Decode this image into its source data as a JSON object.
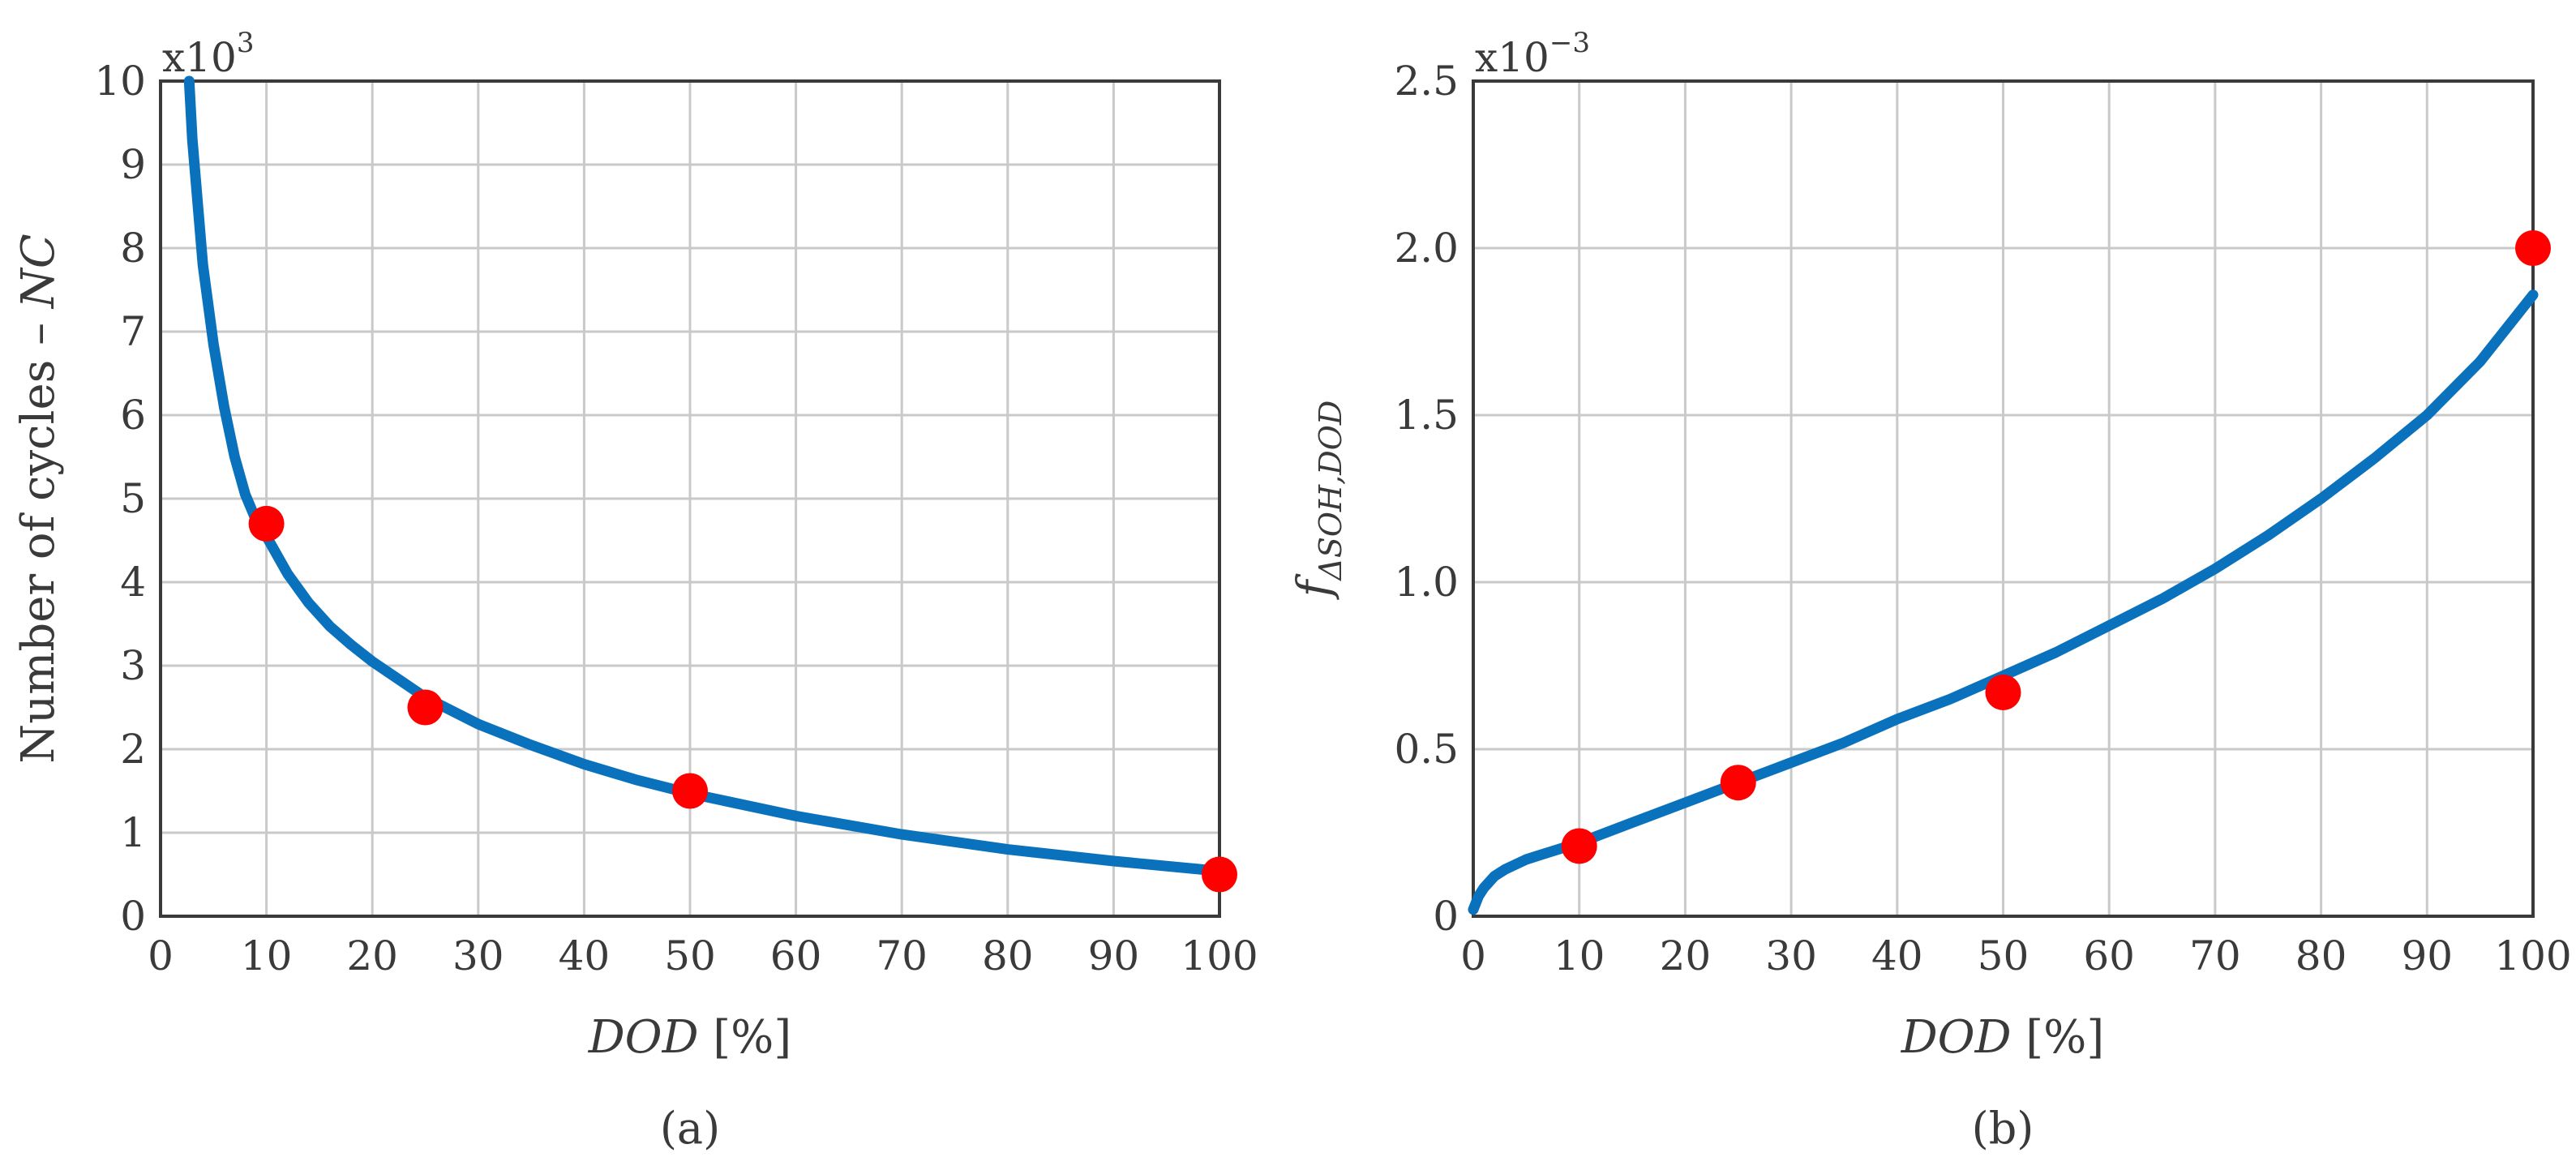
{
  "chart_data": [
    {
      "type": "line",
      "panel_label": "(a)",
      "xlabel_italic": "DOD",
      "xlabel_rest": " [%]",
      "ylabel_text": "Number of cycles – ",
      "ylabel_italic": "NC",
      "multiplier_base": "x10",
      "multiplier_exp": "3",
      "xlim": [
        0,
        100
      ],
      "ylim": [
        0,
        10
      ],
      "xticks": [
        "0",
        "10",
        "20",
        "30",
        "40",
        "50",
        "60",
        "70",
        "80",
        "90",
        "100"
      ],
      "yticks": [
        "0",
        "1",
        "2",
        "3",
        "4",
        "5",
        "6",
        "7",
        "8",
        "9",
        "10"
      ],
      "grid": true,
      "series": [
        {
          "kind": "curve",
          "color": "#0a72bd",
          "x": [
            2.7,
            3,
            4,
            5,
            6,
            7,
            8,
            9,
            10,
            12,
            14,
            16,
            18,
            20,
            25,
            30,
            35,
            40,
            45,
            50,
            60,
            70,
            80,
            90,
            100
          ],
          "y": [
            10.0,
            9.3,
            7.8,
            6.85,
            6.1,
            5.5,
            5.05,
            4.75,
            4.55,
            4.1,
            3.75,
            3.47,
            3.25,
            3.05,
            2.62,
            2.3,
            2.05,
            1.82,
            1.63,
            1.47,
            1.2,
            0.98,
            0.8,
            0.66,
            0.54
          ]
        },
        {
          "kind": "markers",
          "color": "#ff0000",
          "x": [
            10,
            25,
            50,
            100
          ],
          "y": [
            4.7,
            2.5,
            1.5,
            0.5
          ]
        }
      ]
    },
    {
      "type": "line",
      "panel_label": "(b)",
      "xlabel_italic": "DOD",
      "xlabel_rest": " [%]",
      "ylabel_f": "f",
      "ylabel_sub": "ΔSOH,DOD",
      "multiplier_base": "x10",
      "multiplier_exp": "−3",
      "xlim": [
        0,
        100
      ],
      "ylim": [
        0,
        2.5
      ],
      "xticks": [
        "0",
        "10",
        "20",
        "30",
        "40",
        "50",
        "60",
        "70",
        "80",
        "90",
        "100"
      ],
      "yticks": [
        "0",
        "0.5",
        "1.0",
        "1.5",
        "2.0",
        "2.5"
      ],
      "grid": true,
      "series": [
        {
          "kind": "curve",
          "color": "#0a72bd",
          "x": [
            0,
            0.5,
            1,
            2,
            3,
            5,
            7,
            10,
            15,
            20,
            25,
            30,
            35,
            40,
            45,
            50,
            55,
            60,
            65,
            70,
            75,
            80,
            85,
            90,
            95,
            100
          ],
          "y": [
            0.02,
            0.06,
            0.085,
            0.12,
            0.14,
            0.17,
            0.19,
            0.22,
            0.28,
            0.34,
            0.4,
            0.46,
            0.52,
            0.59,
            0.65,
            0.72,
            0.79,
            0.87,
            0.95,
            1.04,
            1.14,
            1.25,
            1.37,
            1.5,
            1.66,
            1.86
          ]
        },
        {
          "kind": "markers",
          "color": "#ff0000",
          "x": [
            10,
            25,
            50,
            100
          ],
          "y": [
            0.21,
            0.4,
            0.67,
            2.0
          ]
        }
      ]
    }
  ]
}
